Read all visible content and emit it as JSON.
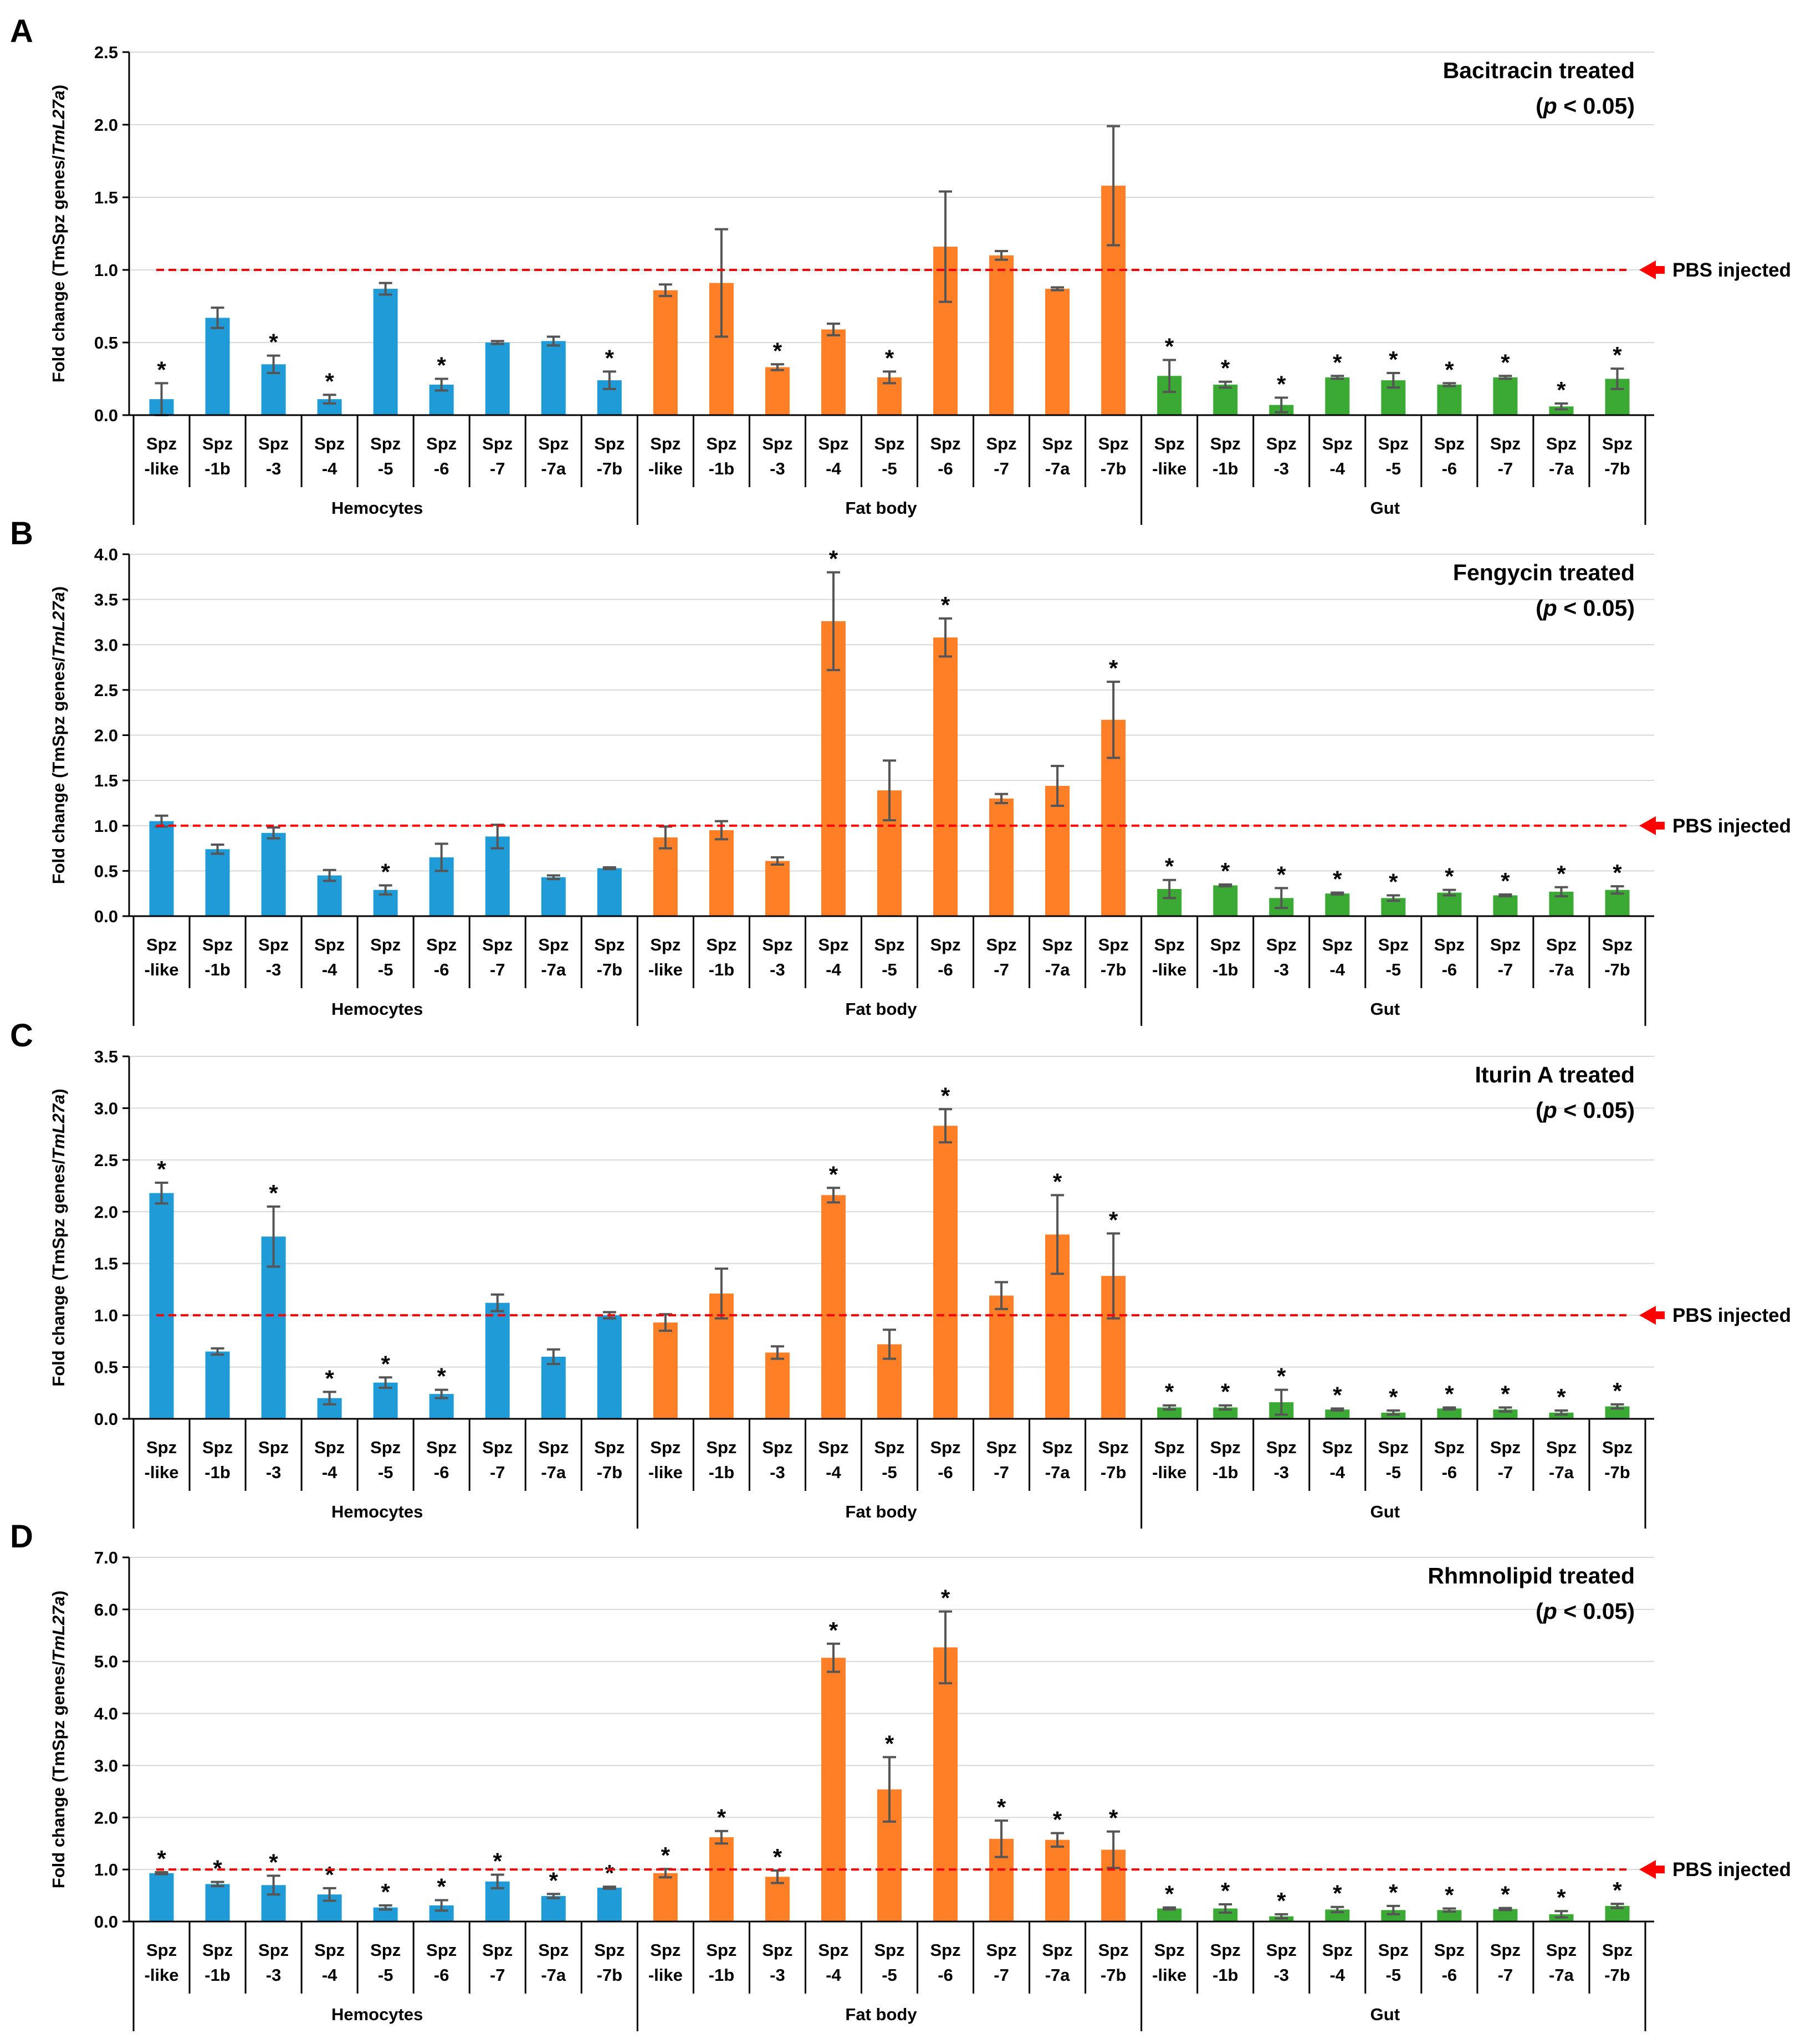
{
  "legend_label": "PBS injected",
  "colors": {
    "hemocytes": "#1f9bd7",
    "fat_body": "#ff7f27",
    "gut": "#3aaa35",
    "pbs_line": "#ff0000",
    "error_bar": "#555555"
  },
  "chart_data": [
    {
      "type": "bar",
      "panel_letter": "A",
      "title_line1": "Bacitracin treated",
      "title_line2_p": "p",
      "title_line2_rest": " < 0.05)",
      "title_line2_open": "(",
      "ylabel_main": "Fold change (TmSpz genes/",
      "ylabel_italic": "TmL27a",
      "ylabel_close": ")",
      "ylim": [
        0,
        2.5
      ],
      "yticks": [
        "0.0",
        "0.5",
        "1.0",
        "1.5",
        "2.0",
        "2.5"
      ],
      "ytick_values": [
        0,
        0.5,
        1.0,
        1.5,
        2.0,
        2.5
      ],
      "reference_line": 1.0,
      "groups": [
        {
          "name": "Hemocytes",
          "color_key": "hemocytes",
          "categories": [
            [
              "Spz",
              "-like"
            ],
            [
              "Spz",
              "-1b"
            ],
            [
              "Spz",
              "-3"
            ],
            [
              "Spz",
              "-4"
            ],
            [
              "Spz",
              "-5"
            ],
            [
              "Spz",
              "-6"
            ],
            [
              "Spz",
              "-7"
            ],
            [
              "Spz",
              "-7a"
            ],
            [
              "Spz",
              "-7b"
            ]
          ],
          "values": [
            0.11,
            0.67,
            0.35,
            0.11,
            0.87,
            0.21,
            0.5,
            0.51,
            0.24
          ],
          "errors": [
            0.11,
            0.07,
            0.06,
            0.03,
            0.04,
            0.04,
            0.01,
            0.03,
            0.06
          ],
          "significant": [
            true,
            false,
            true,
            true,
            false,
            true,
            false,
            false,
            true
          ]
        },
        {
          "name": "Fat body",
          "color_key": "fat_body",
          "categories": [
            [
              "Spz",
              "-like"
            ],
            [
              "Spz",
              "-1b"
            ],
            [
              "Spz",
              "-3"
            ],
            [
              "Spz",
              "-4"
            ],
            [
              "Spz",
              "-5"
            ],
            [
              "Spz",
              "-6"
            ],
            [
              "Spz",
              "-7"
            ],
            [
              "Spz",
              "-7a"
            ],
            [
              "Spz",
              "-7b"
            ]
          ],
          "values": [
            0.86,
            0.91,
            0.33,
            0.59,
            0.26,
            1.16,
            1.1,
            0.87,
            1.58
          ],
          "errors": [
            0.04,
            0.37,
            0.02,
            0.04,
            0.04,
            0.38,
            0.03,
            0.01,
            0.41
          ],
          "significant": [
            false,
            false,
            true,
            false,
            true,
            false,
            false,
            false,
            false
          ]
        },
        {
          "name": "Gut",
          "color_key": "gut",
          "categories": [
            [
              "Spz",
              "-like"
            ],
            [
              "Spz",
              "-1b"
            ],
            [
              "Spz",
              "-3"
            ],
            [
              "Spz",
              "-4"
            ],
            [
              "Spz",
              "-5"
            ],
            [
              "Spz",
              "-6"
            ],
            [
              "Spz",
              "-7"
            ],
            [
              "Spz",
              "-7a"
            ],
            [
              "Spz",
              "-7b"
            ]
          ],
          "values": [
            0.27,
            0.21,
            0.07,
            0.26,
            0.24,
            0.21,
            0.26,
            0.06,
            0.25
          ],
          "errors": [
            0.11,
            0.02,
            0.05,
            0.01,
            0.05,
            0.01,
            0.01,
            0.02,
            0.07
          ],
          "significant": [
            true,
            true,
            true,
            true,
            true,
            true,
            true,
            true,
            true
          ]
        }
      ]
    },
    {
      "type": "bar",
      "panel_letter": "B",
      "title_line1": "Fengycin treated",
      "title_line2_p": "p",
      "title_line2_rest": " < 0.05)",
      "title_line2_open": "(",
      "ylabel_main": "Fold change (TmSpz genes/",
      "ylabel_italic": "TmL27a",
      "ylabel_close": ")",
      "ylim": [
        0,
        4.0
      ],
      "yticks": [
        "0.0",
        "0.5",
        "1.0",
        "1.5",
        "2.0",
        "2.5",
        "3.0",
        "3.5",
        "4.0"
      ],
      "ytick_values": [
        0,
        0.5,
        1.0,
        1.5,
        2.0,
        2.5,
        3.0,
        3.5,
        4.0
      ],
      "reference_line": 1.0,
      "groups": [
        {
          "name": "Hemocytes",
          "color_key": "hemocytes",
          "categories": [
            [
              "Spz",
              "-like"
            ],
            [
              "Spz",
              "-1b"
            ],
            [
              "Spz",
              "-3"
            ],
            [
              "Spz",
              "-4"
            ],
            [
              "Spz",
              "-5"
            ],
            [
              "Spz",
              "-6"
            ],
            [
              "Spz",
              "-7"
            ],
            [
              "Spz",
              "-7a"
            ],
            [
              "Spz",
              "-7b"
            ]
          ],
          "values": [
            1.05,
            0.74,
            0.92,
            0.45,
            0.29,
            0.65,
            0.88,
            0.43,
            0.53
          ],
          "errors": [
            0.06,
            0.05,
            0.06,
            0.06,
            0.05,
            0.15,
            0.13,
            0.02,
            0.01
          ],
          "significant": [
            false,
            false,
            false,
            false,
            true,
            false,
            false,
            false,
            false
          ]
        },
        {
          "name": "Fat body",
          "color_key": "fat_body",
          "categories": [
            [
              "Spz",
              "-like"
            ],
            [
              "Spz",
              "-1b"
            ],
            [
              "Spz",
              "-3"
            ],
            [
              "Spz",
              "-4"
            ],
            [
              "Spz",
              "-5"
            ],
            [
              "Spz",
              "-6"
            ],
            [
              "Spz",
              "-7"
            ],
            [
              "Spz",
              "-7a"
            ],
            [
              "Spz",
              "-7b"
            ]
          ],
          "values": [
            0.87,
            0.95,
            0.61,
            3.26,
            1.39,
            3.08,
            1.3,
            1.44,
            2.17
          ],
          "errors": [
            0.12,
            0.1,
            0.04,
            0.54,
            0.33,
            0.21,
            0.05,
            0.22,
            0.42
          ],
          "significant": [
            false,
            false,
            false,
            true,
            false,
            true,
            false,
            false,
            true
          ]
        },
        {
          "name": "Gut",
          "color_key": "gut",
          "categories": [
            [
              "Spz",
              "-like"
            ],
            [
              "Spz",
              "-1b"
            ],
            [
              "Spz",
              "-3"
            ],
            [
              "Spz",
              "-4"
            ],
            [
              "Spz",
              "-5"
            ],
            [
              "Spz",
              "-6"
            ],
            [
              "Spz",
              "-7"
            ],
            [
              "Spz",
              "-7a"
            ],
            [
              "Spz",
              "-7b"
            ]
          ],
          "values": [
            0.3,
            0.34,
            0.2,
            0.25,
            0.2,
            0.26,
            0.23,
            0.27,
            0.29
          ],
          "errors": [
            0.1,
            0.01,
            0.11,
            0.01,
            0.03,
            0.03,
            0.01,
            0.05,
            0.04
          ],
          "significant": [
            true,
            true,
            true,
            true,
            true,
            true,
            true,
            true,
            true
          ]
        }
      ]
    },
    {
      "type": "bar",
      "panel_letter": "C",
      "title_line1": "Iturin A treated",
      "title_line2_p": "p",
      "title_line2_rest": " < 0.05)",
      "title_line2_open": "(",
      "ylabel_main": "Fold change (TmSpz genes/",
      "ylabel_italic": "TmL27a",
      "ylabel_close": ")",
      "ylim": [
        0,
        3.5
      ],
      "yticks": [
        "0.0",
        "0.5",
        "1.0",
        "1.5",
        "2.0",
        "2.5",
        "3.0",
        "3.5"
      ],
      "ytick_values": [
        0,
        0.5,
        1.0,
        1.5,
        2.0,
        2.5,
        3.0,
        3.5
      ],
      "reference_line": 1.0,
      "groups": [
        {
          "name": "Hemocytes",
          "color_key": "hemocytes",
          "categories": [
            [
              "Spz",
              "-like"
            ],
            [
              "Spz",
              "-1b"
            ],
            [
              "Spz",
              "-3"
            ],
            [
              "Spz",
              "-4"
            ],
            [
              "Spz",
              "-5"
            ],
            [
              "Spz",
              "-6"
            ],
            [
              "Spz",
              "-7"
            ],
            [
              "Spz",
              "-7a"
            ],
            [
              "Spz",
              "-7b"
            ]
          ],
          "values": [
            2.18,
            0.65,
            1.76,
            0.2,
            0.35,
            0.24,
            1.12,
            0.6,
            1.0
          ],
          "errors": [
            0.1,
            0.03,
            0.29,
            0.06,
            0.05,
            0.04,
            0.08,
            0.07,
            0.03
          ],
          "significant": [
            true,
            false,
            true,
            true,
            true,
            true,
            false,
            false,
            false
          ]
        },
        {
          "name": "Fat body",
          "color_key": "fat_body",
          "categories": [
            [
              "Spz",
              "-like"
            ],
            [
              "Spz",
              "-1b"
            ],
            [
              "Spz",
              "-3"
            ],
            [
              "Spz",
              "-4"
            ],
            [
              "Spz",
              "-5"
            ],
            [
              "Spz",
              "-6"
            ],
            [
              "Spz",
              "-7"
            ],
            [
              "Spz",
              "-7a"
            ],
            [
              "Spz",
              "-7b"
            ]
          ],
          "values": [
            0.93,
            1.21,
            0.64,
            2.16,
            0.72,
            2.83,
            1.19,
            1.78,
            1.38
          ],
          "errors": [
            0.08,
            0.24,
            0.06,
            0.07,
            0.14,
            0.16,
            0.13,
            0.38,
            0.41
          ],
          "significant": [
            false,
            false,
            false,
            true,
            false,
            true,
            false,
            true,
            true
          ]
        },
        {
          "name": "Gut",
          "color_key": "gut",
          "categories": [
            [
              "Spz",
              "-like"
            ],
            [
              "Spz",
              "-1b"
            ],
            [
              "Spz",
              "-3"
            ],
            [
              "Spz",
              "-4"
            ],
            [
              "Spz",
              "-5"
            ],
            [
              "Spz",
              "-6"
            ],
            [
              "Spz",
              "-7"
            ],
            [
              "Spz",
              "-7a"
            ],
            [
              "Spz",
              "-7b"
            ]
          ],
          "values": [
            0.11,
            0.11,
            0.16,
            0.09,
            0.06,
            0.1,
            0.09,
            0.06,
            0.12
          ],
          "errors": [
            0.02,
            0.02,
            0.12,
            0.01,
            0.02,
            0.01,
            0.02,
            0.02,
            0.02
          ],
          "significant": [
            true,
            true,
            true,
            true,
            true,
            true,
            true,
            true,
            true
          ]
        }
      ]
    },
    {
      "type": "bar",
      "panel_letter": "D",
      "title_line1": "Rhmnolipid  treated",
      "title_line2_p": "p",
      "title_line2_rest": " < 0.05)",
      "title_line2_open": "(",
      "ylabel_main": "Fold change (TmSpz genes/",
      "ylabel_italic": "TmL27a",
      "ylabel_close": ")",
      "ylim": [
        0,
        7.0
      ],
      "yticks": [
        "0.0",
        "1.0",
        "2.0",
        "3.0",
        "4.0",
        "5.0",
        "6.0",
        "7.0"
      ],
      "ytick_values": [
        0,
        1,
        2,
        3,
        4,
        5,
        6,
        7
      ],
      "reference_line": 1.0,
      "groups": [
        {
          "name": "Hemocytes",
          "color_key": "hemocytes",
          "categories": [
            [
              "Spz",
              "-like"
            ],
            [
              "Spz",
              "-1b"
            ],
            [
              "Spz",
              "-3"
            ],
            [
              "Spz",
              "-4"
            ],
            [
              "Spz",
              "-5"
            ],
            [
              "Spz",
              "-6"
            ],
            [
              "Spz",
              "-7"
            ],
            [
              "Spz",
              "-7a"
            ],
            [
              "Spz",
              "-7b"
            ]
          ],
          "values": [
            0.93,
            0.72,
            0.7,
            0.52,
            0.27,
            0.31,
            0.77,
            0.49,
            0.65
          ],
          "errors": [
            0.02,
            0.04,
            0.18,
            0.12,
            0.04,
            0.1,
            0.13,
            0.04,
            0.02
          ],
          "significant": [
            true,
            true,
            true,
            true,
            true,
            true,
            true,
            true,
            true
          ]
        },
        {
          "name": "Fat body",
          "color_key": "fat_body",
          "categories": [
            [
              "Spz",
              "-like"
            ],
            [
              "Spz",
              "-1b"
            ],
            [
              "Spz",
              "-3"
            ],
            [
              "Spz",
              "-4"
            ],
            [
              "Spz",
              "-5"
            ],
            [
              "Spz",
              "-6"
            ],
            [
              "Spz",
              "-7"
            ],
            [
              "Spz",
              "-7a"
            ],
            [
              "Spz",
              "-7b"
            ]
          ],
          "values": [
            0.93,
            1.62,
            0.86,
            5.07,
            2.54,
            5.27,
            1.59,
            1.57,
            1.38
          ],
          "errors": [
            0.08,
            0.12,
            0.12,
            0.27,
            0.62,
            0.69,
            0.35,
            0.13,
            0.35
          ],
          "significant": [
            true,
            true,
            true,
            true,
            true,
            true,
            true,
            true,
            true
          ]
        },
        {
          "name": "Gut",
          "color_key": "gut",
          "categories": [
            [
              "Spz",
              "-like"
            ],
            [
              "Spz",
              "-1b"
            ],
            [
              "Spz",
              "-3"
            ],
            [
              "Spz",
              "-4"
            ],
            [
              "Spz",
              "-5"
            ],
            [
              "Spz",
              "-6"
            ],
            [
              "Spz",
              "-7"
            ],
            [
              "Spz",
              "-7a"
            ],
            [
              "Spz",
              "-7b"
            ]
          ],
          "values": [
            0.25,
            0.25,
            0.1,
            0.23,
            0.22,
            0.22,
            0.24,
            0.14,
            0.3
          ],
          "errors": [
            0.02,
            0.08,
            0.04,
            0.05,
            0.08,
            0.03,
            0.02,
            0.06,
            0.04
          ],
          "significant": [
            true,
            true,
            true,
            true,
            true,
            true,
            true,
            true,
            true
          ]
        }
      ]
    }
  ]
}
